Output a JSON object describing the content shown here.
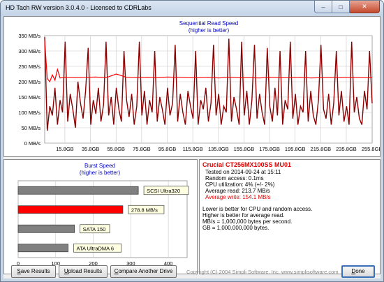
{
  "window": {
    "title": "HD Tach RW version 3.0.4.0 - Licensed to CDRLabs",
    "minimize_glyph": "–",
    "maximize_glyph": "□",
    "close_glyph": "✕"
  },
  "seq_chart": {
    "title": "Sequential Read Speed",
    "subtitle": "(higher is better)",
    "y_ticks": [
      "0 MB/s",
      "50 MB/s",
      "100 MB/s",
      "150 MB/s",
      "200 MB/s",
      "250 MB/s",
      "300 MB/s",
      "350 MB/s"
    ],
    "x_ticks": [
      "15.8GB",
      "35.8GB",
      "55.8GB",
      "75.8GB",
      "95.8GB",
      "115.8GB",
      "135.8GB",
      "155.8GB",
      "175.8GB",
      "195.8GB",
      "215.8GB",
      "235.8GB",
      "255.8GB"
    ]
  },
  "burst_chart": {
    "title": "Burst Speed",
    "subtitle": "(higher is better)",
    "x_ticks": [
      "0",
      "100",
      "200",
      "300",
      "400"
    ],
    "bars": [
      {
        "label": "SCSI Ultra320",
        "color": "#808080"
      },
      {
        "label": "278.8 MB/s",
        "color": "#ff0000"
      },
      {
        "label": "SATA 150",
        "color": "#808080"
      },
      {
        "label": "ATA UltraDMA 6",
        "color": "#808080"
      }
    ]
  },
  "chart_data": [
    {
      "type": "line",
      "title": "Sequential Read Speed",
      "subtitle": "(higher is better)",
      "ylim": [
        0,
        350
      ],
      "xlim": [
        0,
        256
      ],
      "x_ticks": [
        "15.8GB",
        "35.8GB",
        "55.8GB",
        "75.8GB",
        "95.8GB",
        "115.8GB",
        "135.8GB",
        "155.8GB",
        "175.8GB",
        "195.8GB",
        "215.8GB",
        "235.8GB",
        "255.8GB"
      ],
      "grid": true,
      "series": [
        {
          "color": "#ff0000",
          "x": [
            0,
            2,
            4,
            6,
            8,
            10,
            12,
            16,
            24,
            32,
            40,
            48,
            56,
            64,
            72,
            80,
            88,
            96,
            104,
            112,
            120,
            128,
            136,
            144,
            152,
            160,
            168,
            176,
            184,
            192,
            200,
            208,
            216,
            224,
            232,
            240,
            248,
            256
          ],
          "y": [
            335,
            210,
            200,
            222,
            205,
            240,
            212,
            214,
            213,
            214,
            215,
            213,
            225,
            214,
            213,
            214,
            213,
            215,
            214,
            213,
            213,
            214,
            212,
            214,
            213,
            213,
            212,
            214,
            213,
            213,
            214,
            212,
            213,
            214,
            213,
            214,
            213,
            213
          ]
        },
        {
          "color": "#8b0000",
          "x": [
            0,
            2,
            4,
            6,
            8,
            10,
            12,
            14,
            16,
            18,
            20,
            22,
            24,
            26,
            28,
            30,
            32,
            34,
            36,
            38,
            40,
            42,
            44,
            46,
            48,
            50,
            52,
            54,
            56,
            58,
            60,
            62,
            64,
            66,
            68,
            70,
            72,
            74,
            76,
            78,
            80,
            82,
            84,
            86,
            88,
            90,
            92,
            94,
            96,
            98,
            100,
            102,
            104,
            106,
            108,
            110,
            112,
            114,
            116,
            118,
            120,
            122,
            124,
            126,
            128,
            130,
            132,
            134,
            136,
            138,
            140,
            142,
            144,
            146,
            148,
            150,
            152,
            154,
            156,
            158,
            160,
            162,
            164,
            166,
            168,
            170,
            172,
            174,
            176,
            178,
            180,
            182,
            184,
            186,
            188,
            190,
            192,
            194,
            196,
            198,
            200,
            202,
            204,
            206,
            208,
            210,
            212,
            214,
            216,
            218,
            220,
            222,
            224,
            226,
            228,
            230,
            232,
            234,
            236,
            238,
            240,
            242,
            244,
            246,
            248,
            250,
            252,
            254,
            256
          ],
          "y": [
            345,
            40,
            120,
            90,
            180,
            60,
            140,
            100,
            330,
            70,
            160,
            110,
            50,
            200,
            130,
            80,
            170,
            310,
            60,
            140,
            95,
            180,
            70,
            125,
            330,
            90,
            150,
            60,
            180,
            110,
            70,
            300,
            140,
            85,
            160,
            60,
            120,
            330,
            90,
            170,
            60,
            140,
            100,
            300,
            70,
            150,
            110,
            60,
            180,
            90,
            130,
            320,
            70,
            160,
            100,
            60,
            170,
            120,
            80,
            300,
            60,
            140,
            110,
            180,
            70,
            130,
            320,
            90,
            160,
            60,
            120,
            100,
            340,
            70,
            150,
            110,
            60,
            330,
            90,
            170,
            60,
            140,
            320,
            80,
            160,
            100,
            60,
            310,
            120,
            70,
            180,
            90,
            300,
            60,
            140,
            110,
            330,
            80,
            160,
            60,
            120,
            100,
            300,
            70,
            170,
            90,
            60,
            140,
            320,
            110,
            80,
            160,
            60,
            130,
            300,
            90,
            170,
            70,
            120,
            60,
            330,
            100,
            150,
            80,
            60,
            170,
            110,
            300,
            130
          ]
        }
      ]
    },
    {
      "type": "bar",
      "title": "Burst Speed",
      "subtitle": "(higher is better)",
      "orientation": "horizontal",
      "categories": [
        "SCSI Ultra320",
        "278.8 MB/s",
        "SATA 150",
        "ATA UltraDMA 6"
      ],
      "values": [
        320,
        278.8,
        150,
        133
      ],
      "xlim": [
        0,
        450
      ],
      "x_ticks": [
        "0",
        "100",
        "200",
        "300",
        "400"
      ]
    }
  ],
  "info": {
    "drive_name": "Crucial  CT256MX100SS MU01",
    "tested_on": "Tested on 2014-09-24 at 15:11",
    "random_access": "Random access: 0.1ms",
    "cpu_utilization": "CPU utilization: 4% (+/- 2%)",
    "average_read": "Average read: 213.7 MB/s",
    "average_write": "Average write: 154.1 MB/s",
    "note1": "Lower is better for CPU and random access.",
    "note2": "Higher is better for average read.",
    "note3": "MB/s = 1,000,000 bytes per second.",
    "note4": "GB = 1,000,000,000 bytes."
  },
  "buttons": {
    "save_label": "Save Results",
    "save_underline": "S",
    "save_rest": "ave Results",
    "upload_label": "Upload Results",
    "upload_underline": "U",
    "upload_rest": "pload Results",
    "compare_label": "Compare Another Drive",
    "compare_underline": "C",
    "compare_rest": "ompare Another Drive",
    "done_label": "Done",
    "done_underline": "D",
    "done_rest": "one"
  },
  "footer": {
    "copyright": "Copyright (C) 2004 Simpli Software, Inc.  www.simplisoftware.com"
  }
}
